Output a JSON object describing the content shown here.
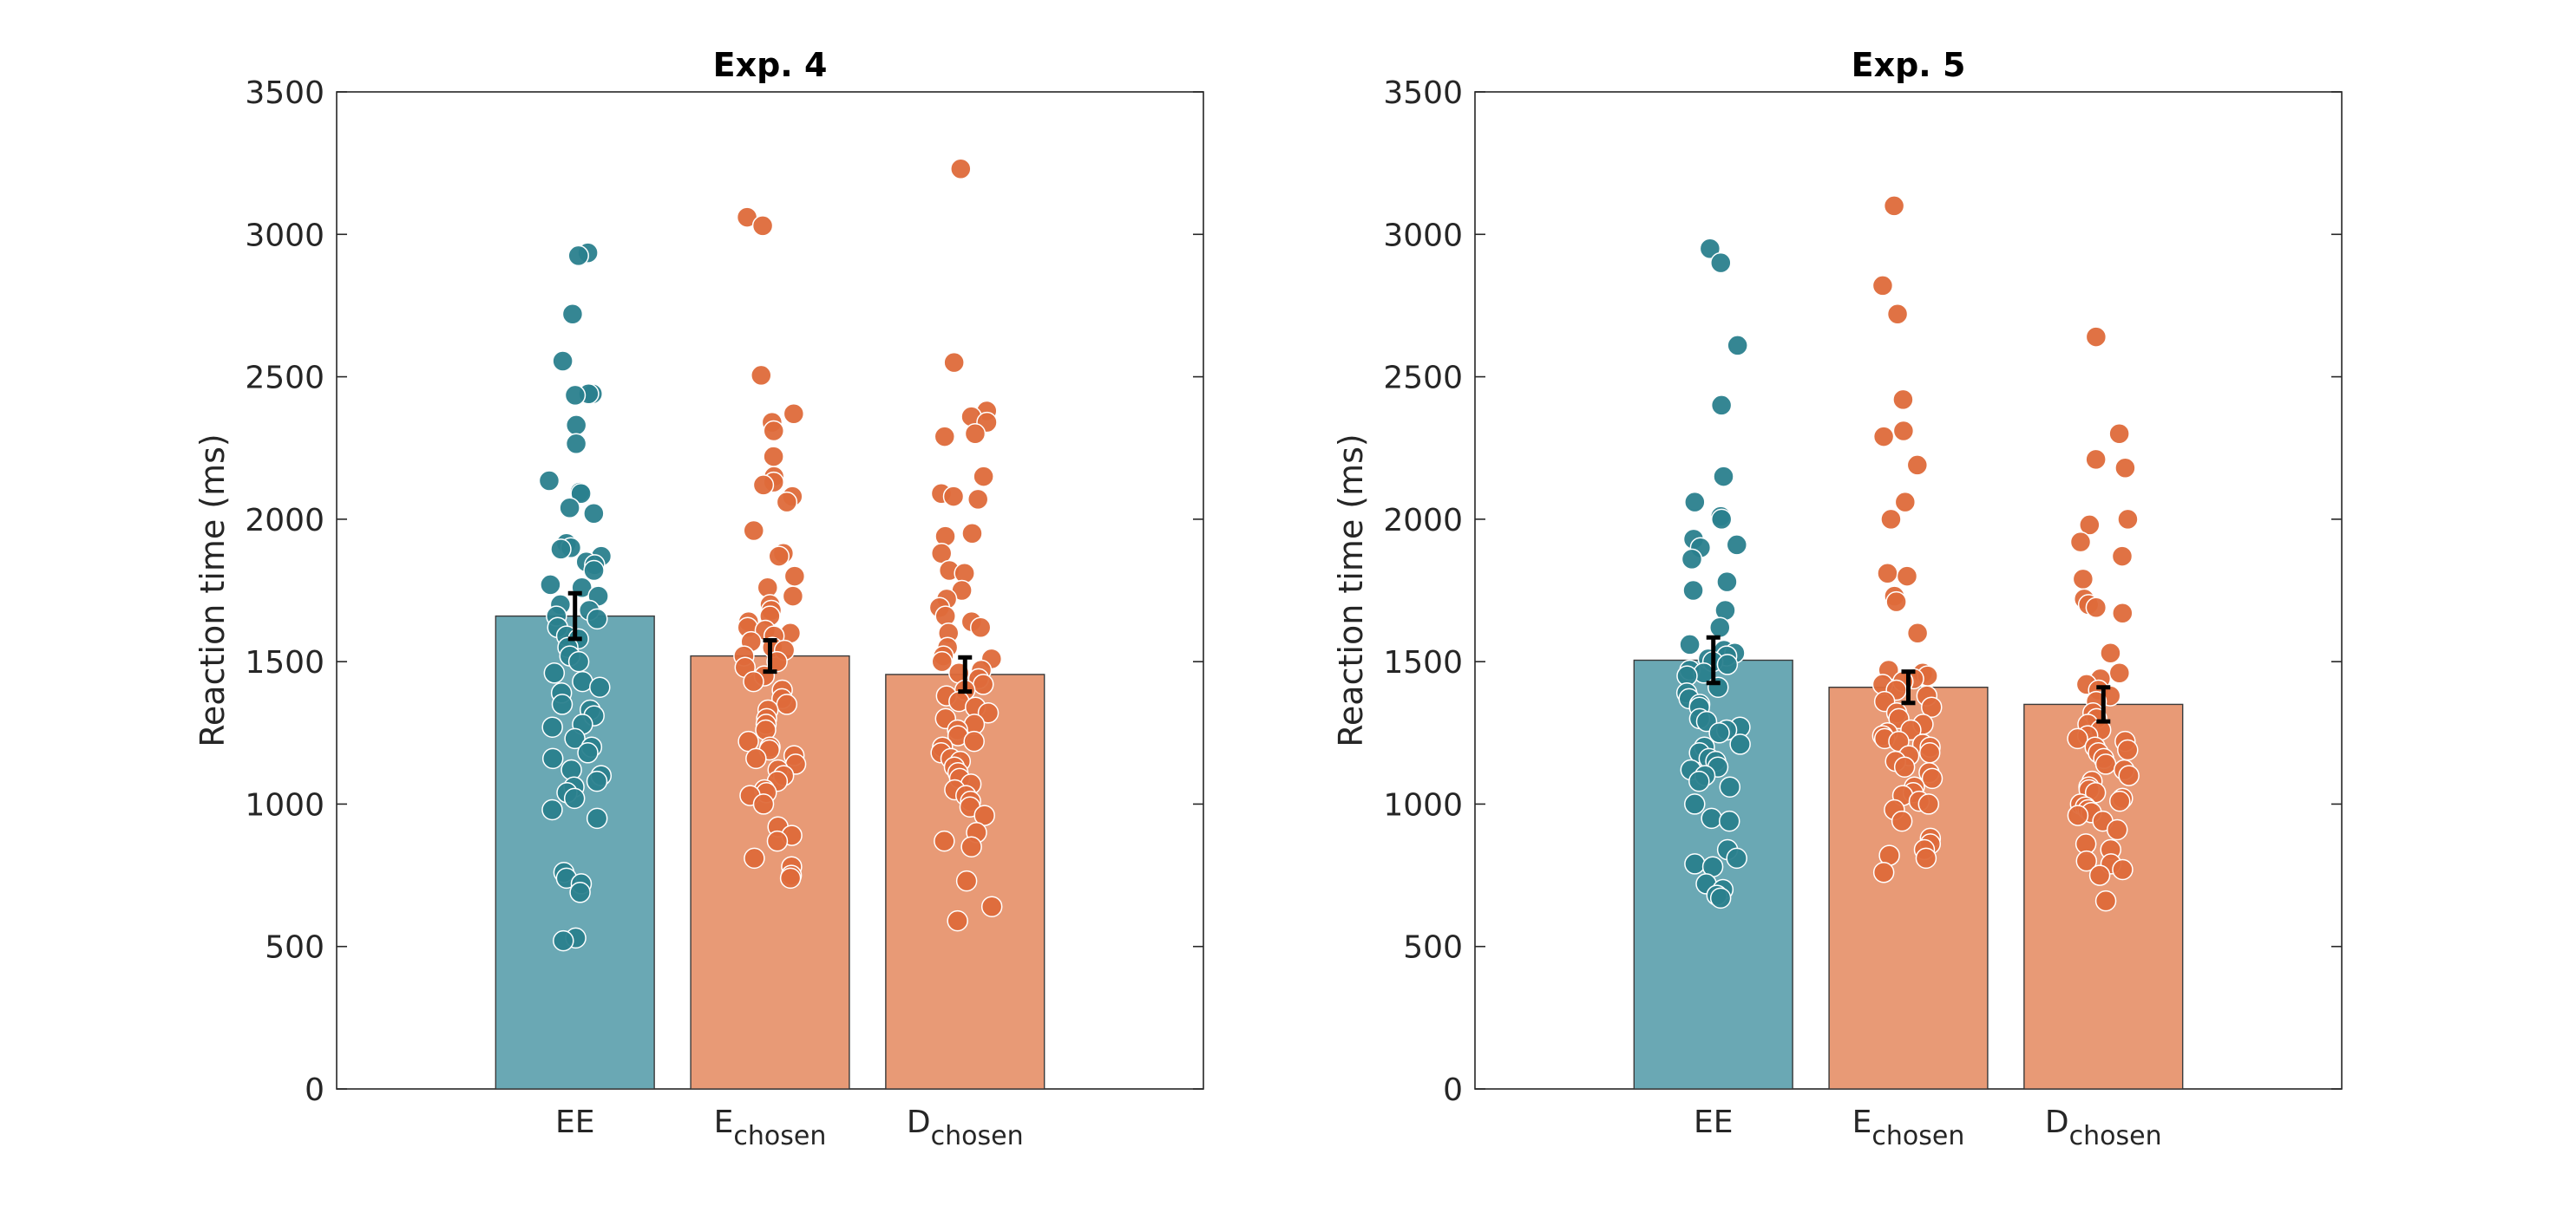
{
  "colors": {
    "ee_bar": "#6aa8b4",
    "ee_dot": "#2a7f8d",
    "chosen_bar": "#e89a76",
    "chosen_dot": "#de6a3a",
    "axis": "#262626",
    "errorbar": "#000000"
  },
  "chart_data": [
    {
      "type": "bar",
      "title": "Exp. 4",
      "xlabel": "",
      "ylabel": "Reaction time (ms)",
      "ylim": [
        0,
        3500
      ],
      "yticks": [
        0,
        500,
        1000,
        1500,
        2000,
        2500,
        3000,
        3500
      ],
      "grid": false,
      "categories": [
        {
          "main": "EE",
          "sub": ""
        },
        {
          "main": "E",
          "sub": "chosen"
        },
        {
          "main": "D",
          "sub": "chosen"
        }
      ],
      "values": [
        1660,
        1520,
        1455
      ],
      "errors": [
        80,
        55,
        60
      ],
      "points": [
        [
          2935,
          2925,
          2720,
          2555,
          2440,
          2440,
          2435,
          2330,
          2265,
          2135,
          2095,
          2090,
          2040,
          2020,
          1915,
          1900,
          1895,
          1870,
          1850,
          1840,
          1820,
          1770,
          1760,
          1730,
          1700,
          1680,
          1660,
          1650,
          1620,
          1590,
          1580,
          1550,
          1520,
          1500,
          1460,
          1430,
          1410,
          1390,
          1350,
          1330,
          1310,
          1280,
          1270,
          1230,
          1200,
          1180,
          1160,
          1120,
          1100,
          1080,
          1060,
          1040,
          1020,
          980,
          950,
          760,
          740,
          720,
          690,
          530,
          520
        ],
        [
          3060,
          3030,
          2505,
          2370,
          2340,
          2310,
          2220,
          2150,
          2130,
          2120,
          2080,
          2060,
          1960,
          1880,
          1870,
          1800,
          1760,
          1730,
          1700,
          1680,
          1660,
          1640,
          1620,
          1610,
          1600,
          1590,
          1570,
          1550,
          1540,
          1520,
          1500,
          1480,
          1450,
          1430,
          1400,
          1370,
          1350,
          1330,
          1300,
          1280,
          1260,
          1220,
          1200,
          1190,
          1170,
          1160,
          1140,
          1120,
          1100,
          1080,
          1050,
          1040,
          1030,
          1000,
          920,
          890,
          870,
          810,
          780,
          750,
          740
        ],
        [
          3230,
          2550,
          2380,
          2360,
          2340,
          2300,
          2290,
          2150,
          2090,
          2080,
          2070,
          1950,
          1940,
          1880,
          1820,
          1810,
          1750,
          1720,
          1690,
          1660,
          1640,
          1620,
          1600,
          1550,
          1520,
          1510,
          1500,
          1470,
          1460,
          1440,
          1420,
          1400,
          1380,
          1360,
          1340,
          1320,
          1300,
          1280,
          1260,
          1240,
          1220,
          1200,
          1180,
          1160,
          1150,
          1130,
          1110,
          1090,
          1070,
          1050,
          1030,
          1010,
          990,
          960,
          900,
          870,
          850,
          730,
          640,
          590
        ]
      ]
    },
    {
      "type": "bar",
      "title": "Exp. 5",
      "xlabel": "",
      "ylabel": "Reaction time (ms)",
      "ylim": [
        0,
        3500
      ],
      "yticks": [
        0,
        500,
        1000,
        1500,
        2000,
        2500,
        3000,
        3500
      ],
      "grid": false,
      "categories": [
        {
          "main": "EE",
          "sub": ""
        },
        {
          "main": "E",
          "sub": "chosen"
        },
        {
          "main": "D",
          "sub": "chosen"
        }
      ],
      "values": [
        1505,
        1410,
        1350
      ],
      "errors": [
        80,
        55,
        60
      ],
      "points": [
        [
          2950,
          2900,
          2610,
          2400,
          2150,
          2060,
          2010,
          2000,
          1930,
          1910,
          1900,
          1860,
          1780,
          1750,
          1680,
          1620,
          1560,
          1540,
          1530,
          1520,
          1510,
          1500,
          1490,
          1470,
          1460,
          1450,
          1410,
          1390,
          1370,
          1350,
          1340,
          1300,
          1290,
          1270,
          1260,
          1250,
          1210,
          1200,
          1180,
          1160,
          1150,
          1130,
          1120,
          1100,
          1080,
          1060,
          1000,
          950,
          940,
          840,
          810,
          790,
          780,
          720,
          700,
          680,
          670
        ],
        [
          3100,
          2820,
          2720,
          2420,
          2310,
          2290,
          2190,
          2060,
          2000,
          1810,
          1800,
          1730,
          1710,
          1600,
          1470,
          1460,
          1450,
          1440,
          1430,
          1420,
          1400,
          1380,
          1360,
          1340,
          1320,
          1300,
          1280,
          1260,
          1250,
          1240,
          1230,
          1220,
          1210,
          1200,
          1180,
          1170,
          1150,
          1130,
          1110,
          1090,
          1060,
          1040,
          1030,
          1010,
          1000,
          980,
          940,
          880,
          860,
          840,
          820,
          810,
          760
        ],
        [
          2640,
          2300,
          2210,
          2180,
          2000,
          1980,
          1920,
          1870,
          1790,
          1720,
          1700,
          1690,
          1670,
          1530,
          1460,
          1440,
          1420,
          1400,
          1380,
          1360,
          1320,
          1300,
          1280,
          1260,
          1240,
          1230,
          1220,
          1200,
          1190,
          1180,
          1160,
          1140,
          1120,
          1100,
          1080,
          1060,
          1050,
          1040,
          1020,
          1010,
          1000,
          990,
          980,
          970,
          960,
          940,
          910,
          860,
          840,
          800,
          790,
          770,
          750,
          660
        ]
      ]
    }
  ]
}
